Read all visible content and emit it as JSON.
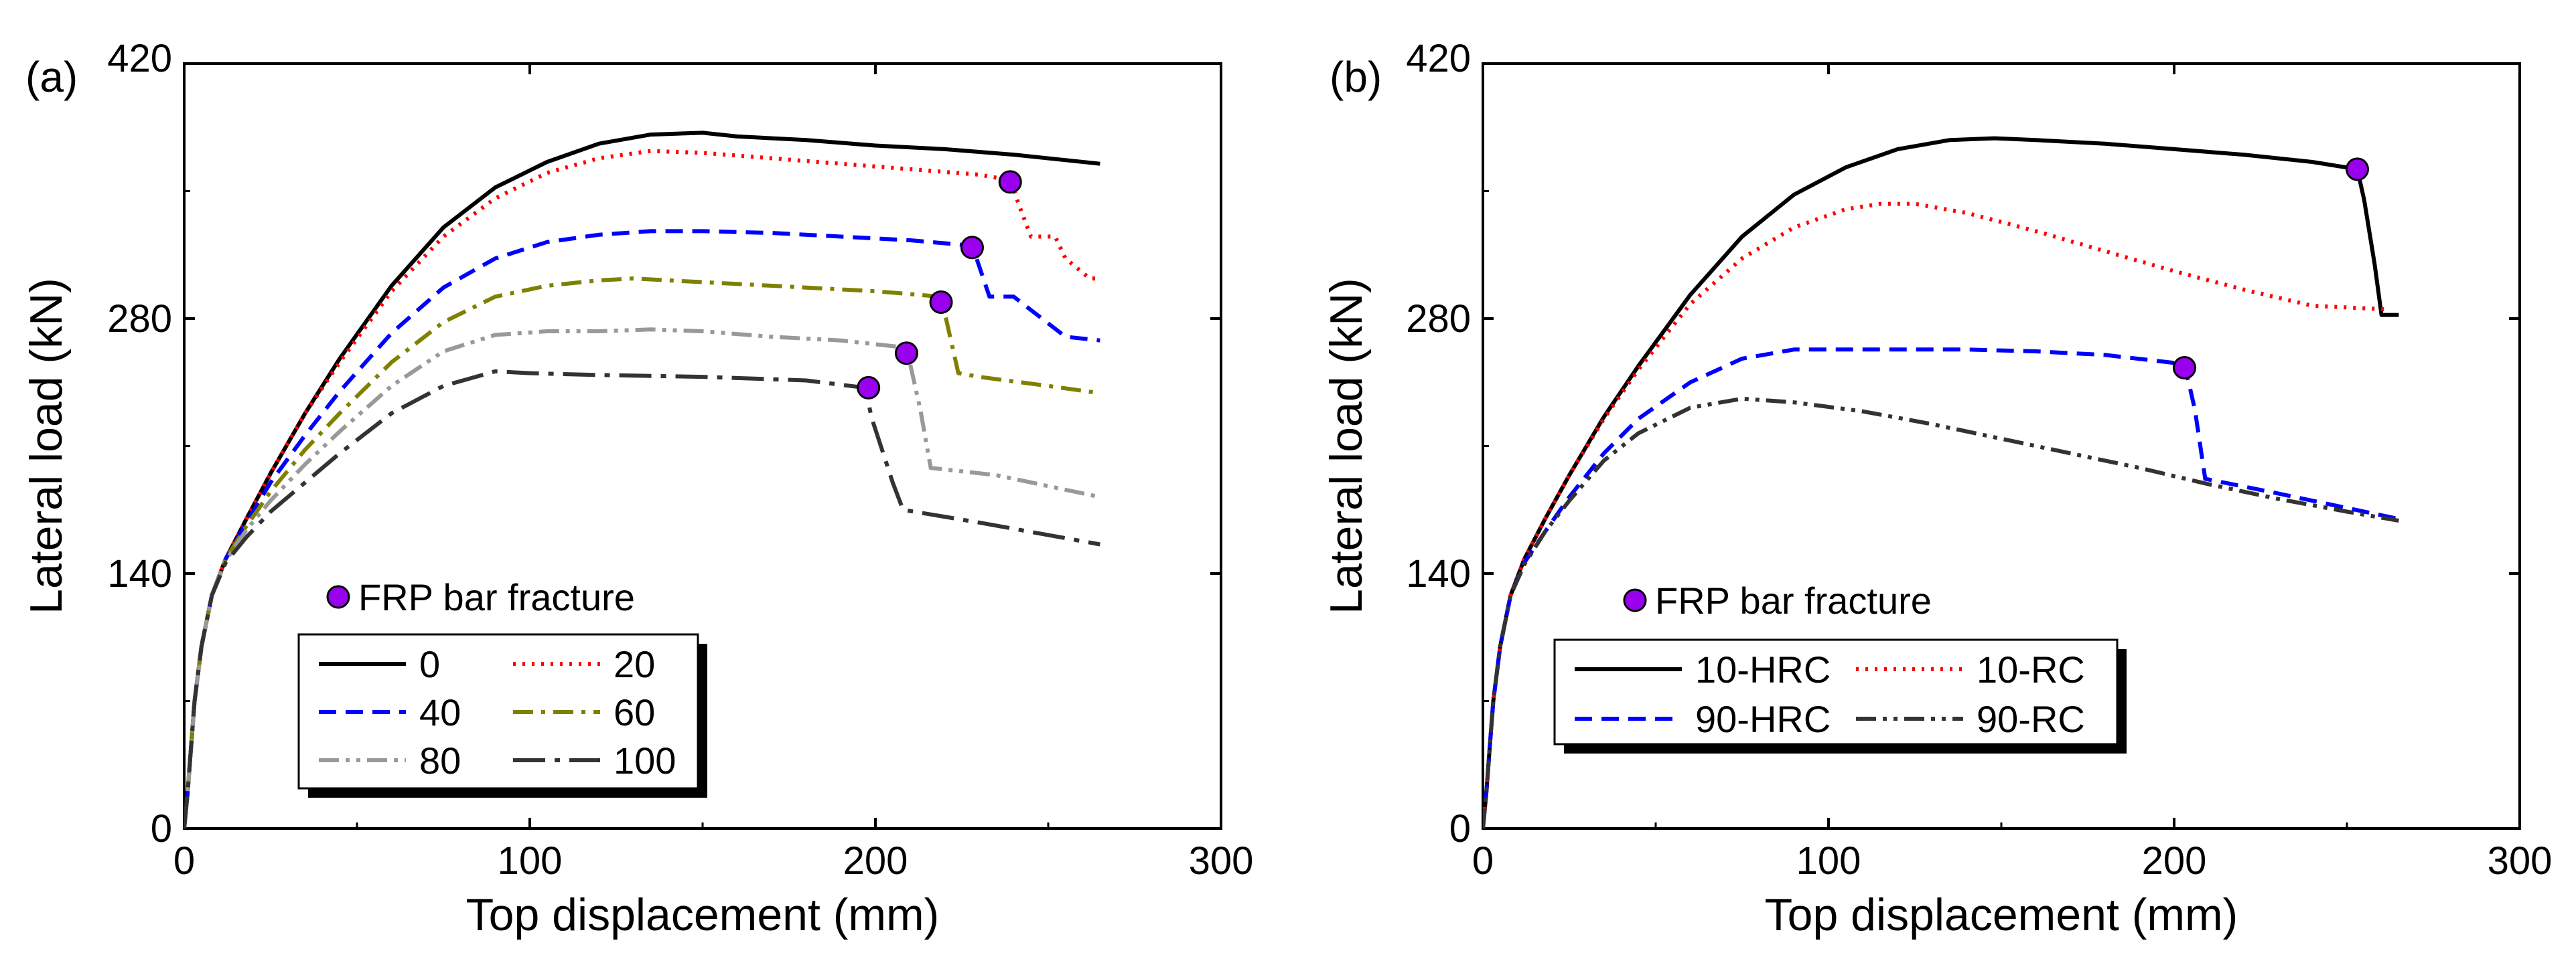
{
  "chart_data": [
    {
      "type": "line",
      "panel_label": "(a)",
      "xlabel": "Top displacement (mm)",
      "ylabel": "Lateral load (kN)",
      "xlim": [
        0,
        300
      ],
      "ylim": [
        0,
        420
      ],
      "xticks": [
        "0",
        "100",
        "200",
        "300"
      ],
      "yticks": [
        "0",
        "140",
        "280",
        "420"
      ],
      "marker_legend": "FRP bar fracture",
      "legend_columns": 2,
      "series": [
        {
          "name": "0",
          "color": "#000000",
          "dash": "solid",
          "x": [
            0,
            1,
            2,
            3,
            5,
            8,
            12,
            18,
            25,
            35,
            45,
            60,
            75,
            90,
            105,
            120,
            135,
            150,
            160,
            180,
            200,
            220,
            240,
            265
          ],
          "y": [
            0,
            20,
            45,
            70,
            100,
            128,
            148,
            170,
            195,
            228,
            258,
            298,
            330,
            352,
            366,
            376,
            381,
            382,
            380,
            378,
            375,
            373,
            370,
            365
          ]
        },
        {
          "name": "20",
          "color": "#ff0000",
          "dash": "dot",
          "x": [
            0,
            1,
            2,
            3,
            5,
            8,
            12,
            18,
            25,
            35,
            45,
            60,
            75,
            90,
            105,
            120,
            135,
            150,
            170,
            190,
            210,
            230,
            239,
            242,
            245,
            252,
            255,
            262,
            265
          ],
          "y": [
            0,
            20,
            45,
            70,
            100,
            128,
            148,
            170,
            195,
            228,
            256,
            295,
            325,
            346,
            360,
            368,
            372,
            371,
            368,
            365,
            362,
            359,
            356,
            340,
            325,
            325,
            313,
            302,
            302
          ]
        },
        {
          "name": "40",
          "color": "#0000ff",
          "dash": "dash",
          "x": [
            0,
            1,
            2,
            3,
            5,
            8,
            12,
            18,
            25,
            35,
            45,
            60,
            75,
            90,
            105,
            120,
            135,
            150,
            170,
            190,
            210,
            228,
            233,
            240,
            255,
            265
          ],
          "y": [
            0,
            20,
            45,
            70,
            100,
            128,
            148,
            168,
            190,
            216,
            240,
            272,
            297,
            313,
            322,
            326,
            328,
            328,
            327,
            325,
            323,
            320,
            292,
            292,
            270,
            268
          ]
        },
        {
          "name": "60",
          "color": "#808000",
          "dash": "dashdot",
          "x": [
            0,
            1,
            2,
            3,
            5,
            8,
            12,
            18,
            25,
            35,
            45,
            60,
            75,
            90,
            105,
            120,
            130,
            140,
            160,
            180,
            200,
            219,
            224,
            230,
            250,
            265
          ],
          "y": [
            0,
            20,
            45,
            70,
            100,
            128,
            148,
            166,
            185,
            208,
            228,
            256,
            278,
            292,
            298,
            301,
            302,
            301,
            299,
            297,
            295,
            292,
            250,
            248,
            243,
            239
          ]
        },
        {
          "name": "80",
          "color": "#999999",
          "dash": "dashdotdot",
          "x": [
            0,
            1,
            2,
            3,
            5,
            8,
            12,
            18,
            25,
            35,
            45,
            60,
            75,
            90,
            105,
            120,
            135,
            150,
            170,
            190,
            209,
            213,
            216,
            235,
            265
          ],
          "y": [
            0,
            20,
            45,
            70,
            100,
            128,
            147,
            164,
            180,
            200,
            218,
            243,
            262,
            271,
            273,
            273,
            274,
            273,
            270,
            268,
            264,
            230,
            198,
            194,
            182
          ]
        },
        {
          "name": "100",
          "color": "#333333",
          "dash": "longdash",
          "x": [
            0,
            1,
            2,
            3,
            5,
            8,
            12,
            18,
            25,
            35,
            45,
            60,
            75,
            90,
            100,
            120,
            150,
            180,
            197,
            199,
            205,
            208,
            230,
            265
          ],
          "y": [
            0,
            20,
            45,
            70,
            100,
            128,
            146,
            160,
            174,
            190,
            206,
            228,
            243,
            251,
            250,
            249,
            248,
            246,
            242,
            225,
            190,
            175,
            168,
            156
          ]
        }
      ],
      "fracture_points": [
        {
          "x": 239,
          "y": 355
        },
        {
          "x": 228,
          "y": 319
        },
        {
          "x": 219,
          "y": 289
        },
        {
          "x": 209,
          "y": 261
        },
        {
          "x": 198,
          "y": 242
        }
      ]
    },
    {
      "type": "line",
      "panel_label": "(b)",
      "xlabel": "Top displacement (mm)",
      "ylabel": "Lateral load (kN)",
      "xlim": [
        0,
        300
      ],
      "ylim": [
        0,
        420
      ],
      "xticks": [
        "0",
        "100",
        "200",
        "300"
      ],
      "yticks": [
        "0",
        "140",
        "280",
        "420"
      ],
      "marker_legend": "FRP bar fracture",
      "legend_columns": 2,
      "series": [
        {
          "name": "10-HRC",
          "color": "#000000",
          "dash": "solid",
          "x": [
            0,
            1,
            2,
            3,
            5,
            8,
            12,
            18,
            25,
            35,
            45,
            60,
            75,
            90,
            105,
            120,
            135,
            148,
            160,
            180,
            200,
            220,
            240,
            253,
            255,
            258,
            260,
            265
          ],
          "y": [
            0,
            20,
            45,
            70,
            100,
            128,
            148,
            170,
            194,
            226,
            254,
            293,
            325,
            348,
            363,
            373,
            378,
            379,
            378,
            376,
            373,
            370,
            366,
            362,
            345,
            310,
            282,
            282
          ]
        },
        {
          "name": "10-RC",
          "color": "#ff0000",
          "dash": "dot",
          "x": [
            0,
            1,
            2,
            3,
            5,
            8,
            12,
            18,
            25,
            35,
            45,
            60,
            75,
            90,
            105,
            115,
            125,
            140,
            160,
            180,
            200,
            220,
            240,
            262
          ],
          "y": [
            0,
            20,
            45,
            70,
            100,
            128,
            148,
            170,
            194,
            225,
            252,
            288,
            313,
            330,
            340,
            343,
            343,
            338,
            328,
            317,
            306,
            296,
            287,
            285
          ]
        },
        {
          "name": "90-HRC",
          "color": "#0000ff",
          "dash": "dash",
          "x": [
            0,
            1,
            2,
            3,
            5,
            8,
            12,
            18,
            25,
            35,
            45,
            60,
            75,
            90,
            100,
            120,
            140,
            160,
            180,
            203,
            206,
            209,
            230,
            265
          ],
          "y": [
            0,
            20,
            45,
            70,
            100,
            128,
            146,
            163,
            182,
            206,
            225,
            245,
            258,
            263,
            263,
            263,
            263,
            262,
            260,
            255,
            230,
            192,
            184,
            170
          ]
        },
        {
          "name": "90-RC",
          "color": "#333333",
          "dash": "dashdotdot",
          "x": [
            0,
            1,
            2,
            3,
            5,
            8,
            12,
            18,
            25,
            35,
            45,
            60,
            75,
            90,
            110,
            130,
            150,
            170,
            190,
            210,
            230,
            250,
            265
          ],
          "y": [
            0,
            20,
            45,
            70,
            100,
            128,
            145,
            163,
            180,
            202,
            217,
            231,
            236,
            234,
            229,
            222,
            214,
            206,
            198,
            189,
            181,
            174,
            169
          ]
        }
      ],
      "fracture_points": [
        {
          "x": 253,
          "y": 362
        },
        {
          "x": 203,
          "y": 253
        }
      ]
    }
  ]
}
